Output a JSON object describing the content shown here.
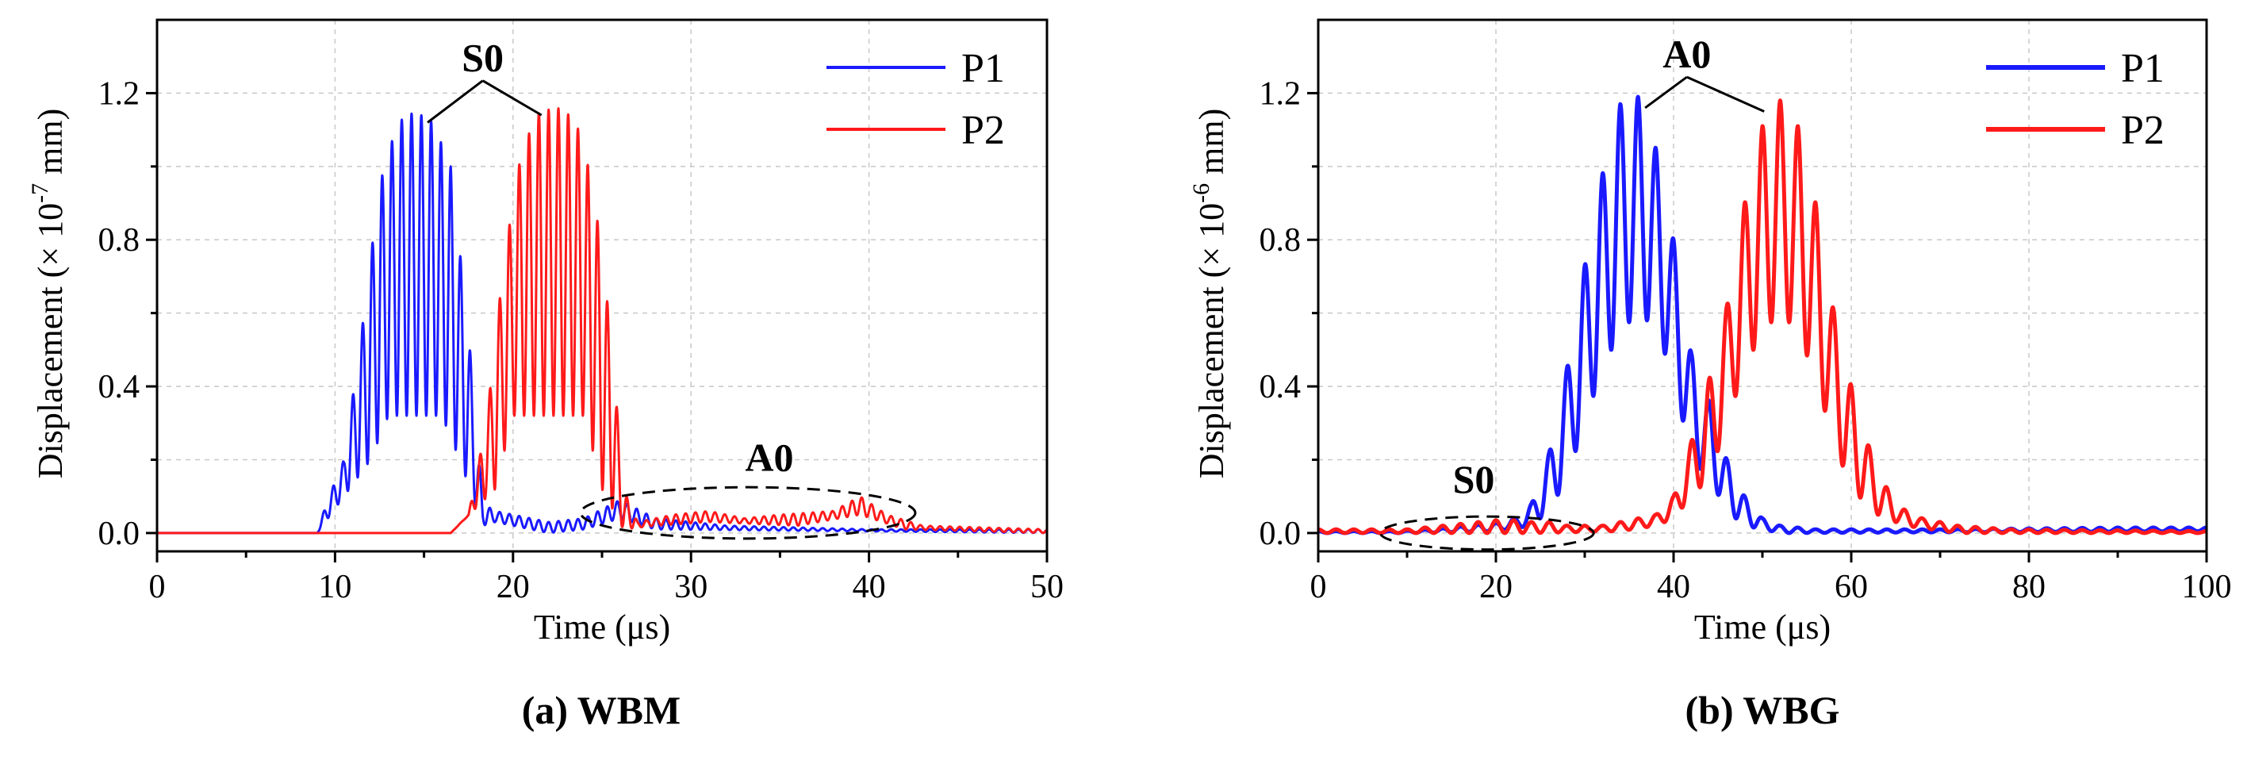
{
  "chart_data": [
    {
      "type": "line",
      "caption": "(a) WBM",
      "xlabel": "Time (μs)",
      "ylabel": {
        "text": "Displacement (× 10",
        "exp": "-7",
        "unit": " mm)"
      },
      "xlim": [
        0,
        50
      ],
      "ylim": [
        -0.05,
        1.4
      ],
      "xticks": [
        0,
        10,
        20,
        30,
        40,
        50
      ],
      "yticks": [
        0.0,
        0.4,
        0.8,
        1.2
      ],
      "yminor": [
        0.2,
        0.6,
        1.0
      ],
      "xminor": [
        5,
        15,
        25,
        35,
        45
      ],
      "ytick_labels": [
        "0.0",
        "0.4",
        "0.8",
        "1.2"
      ],
      "legend": {
        "position": "top-right"
      },
      "series": [
        {
          "name": "P1",
          "color": "#1a1aff",
          "linewidth": 3,
          "envelope": [
            [
              0,
              0
            ],
            [
              9,
              0
            ],
            [
              9.5,
              0.08
            ],
            [
              10.5,
              0.2
            ],
            [
              11.5,
              0.55
            ],
            [
              12.5,
              0.95
            ],
            [
              13.5,
              1.12
            ],
            [
              14.5,
              1.15
            ],
            [
              15.5,
              1.12
            ],
            [
              16.5,
              1.0
            ],
            [
              17.5,
              0.55
            ],
            [
              18.3,
              0.08
            ],
            [
              19,
              0.06
            ],
            [
              22,
              0.03
            ],
            [
              24,
              0.04
            ],
            [
              26,
              0.09
            ],
            [
              28,
              0.04
            ],
            [
              32,
              0.02
            ],
            [
              40,
              0.01
            ],
            [
              50,
              0.01
            ]
          ],
          "trough": [
            [
              0,
              0
            ],
            [
              9,
              0
            ],
            [
              12,
              0.2
            ],
            [
              13,
              0.32
            ],
            [
              16,
              0.32
            ],
            [
              17,
              0.2
            ],
            [
              18.3,
              0.02
            ],
            [
              19,
              0.03
            ],
            [
              22,
              0.0
            ],
            [
              24,
              0.01
            ],
            [
              26,
              0.04
            ],
            [
              28,
              0.01
            ],
            [
              50,
              0
            ]
          ],
          "period": 0.55
        },
        {
          "name": "P2",
          "color": "#ff1a1a",
          "linewidth": 3,
          "envelope": [
            [
              0,
              0
            ],
            [
              16.5,
              0
            ],
            [
              17.5,
              0.05
            ],
            [
              18.5,
              0.3
            ],
            [
              19.5,
              0.75
            ],
            [
              20.5,
              1.05
            ],
            [
              21.5,
              1.15
            ],
            [
              22.5,
              1.16
            ],
            [
              23.5,
              1.13
            ],
            [
              24.5,
              0.95
            ],
            [
              25.5,
              0.55
            ],
            [
              26.2,
              0.12
            ],
            [
              27,
              0.03
            ],
            [
              29,
              0.05
            ],
            [
              31,
              0.06
            ],
            [
              33,
              0.04
            ],
            [
              35,
              0.05
            ],
            [
              38,
              0.06
            ],
            [
              39.5,
              0.1
            ],
            [
              41,
              0.05
            ],
            [
              43,
              0.02
            ],
            [
              50,
              0.01
            ]
          ],
          "trough": [
            [
              0,
              0
            ],
            [
              16.5,
              0
            ],
            [
              19,
              0.12
            ],
            [
              20,
              0.32
            ],
            [
              24,
              0.32
            ],
            [
              25,
              0.12
            ],
            [
              26.2,
              0.01
            ],
            [
              28,
              0.02
            ],
            [
              31,
              0.03
            ],
            [
              36,
              0.02
            ],
            [
              39.5,
              0.05
            ],
            [
              42,
              0.01
            ],
            [
              50,
              0
            ]
          ],
          "period": 0.55
        }
      ],
      "annotations": [
        {
          "text": "S0",
          "x": 18.3,
          "y": 1.26,
          "pointers": [
            [
              15.2,
              1.12
            ],
            [
              21.6,
              1.14
            ]
          ]
        },
        {
          "text": "A0",
          "x": 34.4,
          "y": 0.17
        },
        {
          "ellipse": {
            "cx": 33.2,
            "cy": 0.055,
            "rx": 9.4,
            "ry": 0.07
          }
        }
      ]
    },
    {
      "type": "line",
      "caption": "(b) WBG",
      "xlabel": "Time (μs)",
      "ylabel": {
        "text": "Displacement (× 10",
        "exp": "-6",
        "unit": " mm)"
      },
      "xlim": [
        0,
        100
      ],
      "ylim": [
        -0.05,
        1.4
      ],
      "xticks": [
        0,
        20,
        40,
        60,
        80,
        100
      ],
      "yticks": [
        0.0,
        0.4,
        0.8,
        1.2
      ],
      "yminor": [
        0.2,
        0.6,
        1.0
      ],
      "xminor": [
        10,
        30,
        50,
        70,
        90
      ],
      "ytick_labels": [
        "0.0",
        "0.4",
        "0.8",
        "1.2"
      ],
      "legend": {
        "position": "top-right"
      },
      "series": [
        {
          "name": "P1",
          "color": "#1a1aff",
          "linewidth": 5,
          "peaks": [
            [
              9,
              0.005
            ],
            [
              11,
              0.008
            ],
            [
              13,
              0.01
            ],
            [
              15,
              0.015
            ],
            [
              17,
              0.02
            ],
            [
              19,
              0.025
            ],
            [
              21,
              0.03
            ],
            [
              23,
              0.05
            ],
            [
              24,
              0.08
            ],
            [
              26,
              0.22
            ],
            [
              28,
              0.45
            ],
            [
              30,
              0.73
            ],
            [
              32,
              0.98
            ],
            [
              34,
              1.17
            ],
            [
              36,
              1.19
            ],
            [
              38,
              1.05
            ],
            [
              40,
              0.8
            ],
            [
              42,
              0.49
            ],
            [
              44,
              0.36
            ],
            [
              46,
              0.2
            ],
            [
              48,
              0.1
            ],
            [
              50,
              0.04
            ],
            [
              52,
              0.02
            ],
            [
              56,
              0.01
            ],
            [
              70,
              0.01
            ],
            [
              90,
              0.015
            ],
            [
              100,
              0.015
            ]
          ],
          "troughs": [
            [
              0,
              0
            ],
            [
              10,
              0.0
            ],
            [
              20,
              0.005
            ],
            [
              24,
              0.02
            ],
            [
              26,
              0.06
            ],
            [
              28,
              0.15
            ],
            [
              30,
              0.3
            ],
            [
              32,
              0.45
            ],
            [
              34,
              0.55
            ],
            [
              36,
              0.6
            ],
            [
              38,
              0.56
            ],
            [
              40,
              0.42
            ],
            [
              42,
              0.2
            ],
            [
              44,
              0.15
            ],
            [
              46,
              0.06
            ],
            [
              48,
              0.02
            ],
            [
              52,
              0.0
            ],
            [
              100,
              0.005
            ]
          ]
        },
        {
          "name": "P2",
          "color": "#ff1a1a",
          "linewidth": 5,
          "peaks": [
            [
              10,
              0.01
            ],
            [
              12,
              0.015
            ],
            [
              14,
              0.02
            ],
            [
              16,
              0.025
            ],
            [
              18,
              0.03
            ],
            [
              20,
              0.035
            ],
            [
              22,
              0.035
            ],
            [
              24,
              0.03
            ],
            [
              26,
              0.03
            ],
            [
              28,
              0.02
            ],
            [
              30,
              0.02
            ],
            [
              32,
              0.02
            ],
            [
              34,
              0.03
            ],
            [
              36,
              0.04
            ],
            [
              38,
              0.05
            ],
            [
              40,
              0.1
            ],
            [
              42,
              0.25
            ],
            [
              43.5,
              0.37
            ],
            [
              46,
              0.62
            ],
            [
              48,
              0.9
            ],
            [
              50,
              1.11
            ],
            [
              52,
              1.18
            ],
            [
              54,
              1.11
            ],
            [
              56,
              0.9
            ],
            [
              58,
              0.61
            ],
            [
              60.5,
              0.35
            ],
            [
              63,
              0.16
            ],
            [
              65.5,
              0.07
            ],
            [
              68,
              0.04
            ],
            [
              72,
              0.02
            ],
            [
              78,
              0.01
            ],
            [
              100,
              0.005
            ]
          ],
          "troughs": [
            [
              0,
              0
            ],
            [
              10,
              0
            ],
            [
              24,
              0.0
            ],
            [
              34,
              0.005
            ],
            [
              38,
              0.02
            ],
            [
              40,
              0.04
            ],
            [
              42,
              0.1
            ],
            [
              44,
              0.15
            ],
            [
              46,
              0.3
            ],
            [
              48,
              0.45
            ],
            [
              50,
              0.55
            ],
            [
              52,
              0.6
            ],
            [
              54,
              0.55
            ],
            [
              56,
              0.42
            ],
            [
              58,
              0.25
            ],
            [
              60,
              0.12
            ],
            [
              63,
              0.05
            ],
            [
              66,
              0.02
            ],
            [
              72,
              0.0
            ],
            [
              100,
              0
            ]
          ]
        }
      ],
      "annotations": [
        {
          "text": "A0",
          "x": 41.5,
          "y": 1.27,
          "pointers": [
            [
              36.8,
              1.16
            ],
            [
              50.2,
              1.15
            ]
          ]
        },
        {
          "text": "S0",
          "x": 17.5,
          "y": 0.11
        },
        {
          "ellipse": {
            "cx": 19,
            "cy": 0.0,
            "rx": 12,
            "ry": 0.045
          }
        }
      ]
    }
  ]
}
